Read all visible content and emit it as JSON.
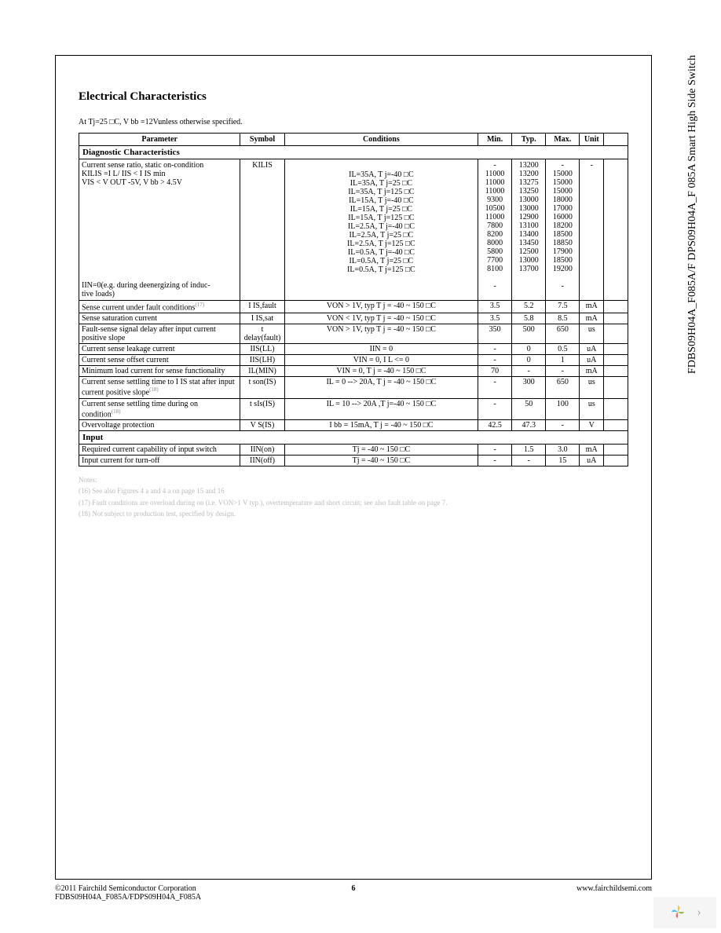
{
  "side_label": "FDBS09H04A_F085A/F   DPS09H04A_F   085A Smart High Side Switch",
  "title": "Electrical Characteristics",
  "subtitle_prefix": "At Tj=25  ",
  "subtitle_suffix": "C, V bb =12Vunless otherwise specified.",
  "headers": {
    "parameter": "Parameter",
    "symbol": "Symbol",
    "conditions": "Conditions",
    "min": "Min.",
    "typ": "Typ.",
    "max": "Max.",
    "unit": "Unit"
  },
  "section_diag": "Diagnostic Characteristics",
  "section_input": "Input",
  "diag_ratio": {
    "p1": "Current sense ratio, static on-condition",
    "p2": "KILIS  =I L/ IIS  < I   IS min",
    "p3": "VIS  < V OUT -5V, V   bb > 4.5V",
    "p4": "IIN=0(e.g. during deenergizing of induc-",
    "p5": "tive loads)",
    "symbol": "KILIS",
    "cond_lines": [
      "IL=35A, T   j=-40  □C",
      "IL=35A, T   j=25  □C",
      "IL=35A, T   j=125  □C",
      "IL=15A, T   j=-40  □C",
      "IL=15A, T   j=25  □C",
      "IL=15A, T   j=125  □C",
      "IL=2.5A, T   j=-40  □C",
      "IL=2.5A, T   j=25  □C",
      "IL=2.5A, T   j=125  □C",
      "IL=0.5A, T   j=-40  □C",
      "IL=0.5A, T   j=25  □C",
      "IL=0.5A, T   j=125  □C"
    ],
    "min": [
      "-",
      "11000",
      "11000",
      "11000",
      "9300",
      "10500",
      "11000",
      "7800",
      "8200",
      "8000",
      "5800",
      "7700",
      "8100",
      "",
      "-"
    ],
    "typ": [
      "13200",
      "13200",
      "13275",
      "13250",
      "13000",
      "13000",
      "12900",
      "13100",
      "13400",
      "13450",
      "12500",
      "13000",
      "13700",
      "",
      ""
    ],
    "max": [
      "-",
      "15000",
      "15000",
      "15000",
      "18000",
      "17000",
      "16000",
      "18200",
      "18500",
      "18850",
      "17900",
      "18500",
      "19200",
      "",
      "-"
    ],
    "unit": "-"
  },
  "rows": [
    {
      "param": "Sense current under fault conditions",
      "sup": "(17)",
      "symbol": "I IS,fault",
      "cond": "VON > 1V, typ T      j = -40 ~ 150     □C",
      "min": "3.5",
      "typ": "5.2",
      "max": "7.5",
      "unit": "mA"
    },
    {
      "param": "Sense saturation current",
      "sup": "",
      "symbol": "I IS,sat",
      "cond": "VON < 1V, typ T      j = -40 ~ 150     □C",
      "min": "3.5",
      "typ": "5.8",
      "max": "8.5",
      "unit": "mA"
    },
    {
      "param": "Fault-sense signal delay after input current positive slope",
      "sup": "",
      "symbol": "t delay(fault)",
      "cond": "VON > 1V, typ T      j = -40 ~ 150     □C",
      "min": "350",
      "typ": "500",
      "max": "650",
      "unit": "us"
    },
    {
      "param": "Current sense leakage current",
      "sup": "",
      "symbol": "IIS(LL)",
      "cond": "IIN = 0",
      "min": "-",
      "typ": "0",
      "max": "0.5",
      "unit": "uA"
    },
    {
      "param": "Current sense offset current",
      "sup": "",
      "symbol": "IIS(LH)",
      "cond": "VIN = 0, I    L <= 0",
      "min": "-",
      "typ": "0",
      "max": "1",
      "unit": "uA"
    },
    {
      "param": "Minimum load current for sense functionality",
      "sup": "",
      "symbol": "IL(MIN)",
      "cond": "VIN = 0, T    j = -40 ~ 150     □C",
      "min": "70",
      "typ": "-",
      "max": "-",
      "unit": "mA"
    },
    {
      "param": "Current sense settling time to I     IS stat after input current positive slope",
      "sup": "(18)",
      "symbol": "t son(IS)",
      "cond": "IL = 0 --> 20A, T       j = -40 ~ 150     □C",
      "min": "-",
      "typ": "300",
      "max": "650",
      "unit": "us"
    },
    {
      "param": "Current sense settling time during on condition",
      "sup": "(18)",
      "symbol": "t sIs(IS)",
      "cond": "IL = 10 --> 20A ,T       j=-40 ~ 150     □C",
      "min": "-",
      "typ": "50",
      "max": "100",
      "unit": "us"
    },
    {
      "param": "Overvoltage protection",
      "sup": "",
      "symbol": "V S(IS)",
      "cond": "I bb  = 15mA, T    j = -40 ~ 150     □C",
      "min": "42.5",
      "typ": "47.3",
      "max": "-",
      "unit": "V"
    }
  ],
  "input_rows": [
    {
      "param": "Required current capability of input switch",
      "symbol": "IIN(on)",
      "cond": "Tj = -40 ~ 150     □C",
      "min": "-",
      "typ": "1.5",
      "max": "3.0",
      "unit": "mA"
    },
    {
      "param": "Input current for turn-off",
      "symbol": "IIN(off)",
      "cond": "Tj = -40 ~ 150     □C",
      "min": "-",
      "typ": "-",
      "max": "15",
      "unit": "uA"
    }
  ],
  "notes": {
    "heading": "Notes:",
    "n1": "(16) See also Figures 4 a and 4 a on page 15 and 16",
    "n2": "(17) Fault conditions are overload during on (i.e. VON>1 V typ.), overtemperature and short circuit; see also fault table on page 7.",
    "n3": "(18) Not subject to production test, specified by design."
  },
  "footer": {
    "copyright": "©2011 Fairchild Semiconductor Corporation",
    "partnum": "FDBS09H04A_F085A/FDPS09H04A_F085A",
    "page": "6",
    "url": "www.fairchildsemi.com"
  },
  "colors": {
    "text": "#000000",
    "faded": "#bbbbbb",
    "nav_bg": "#f5f5f5"
  }
}
